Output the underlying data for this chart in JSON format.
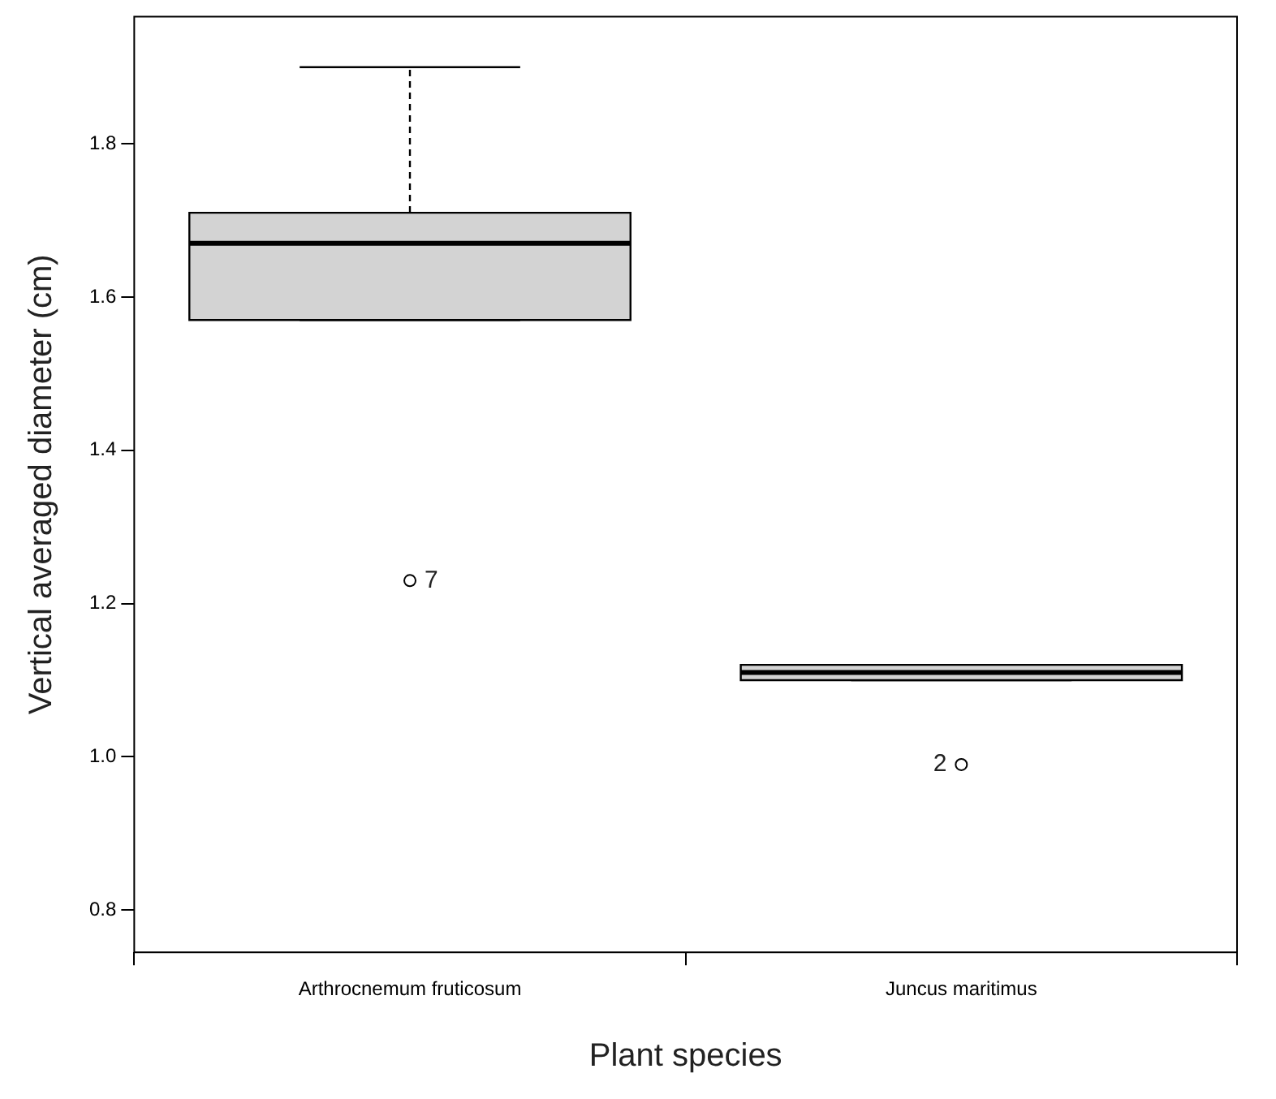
{
  "chart_data": {
    "type": "box",
    "xlabel": "Plant species",
    "ylabel": "Vertical averaged diameter (cm)",
    "categories": [
      "Arthrocnemum fruticosum",
      "Juncus maritimus"
    ],
    "boxes": [
      {
        "low": 1.57,
        "q1": 1.57,
        "median": 1.67,
        "q3": 1.71,
        "high": 1.9,
        "outliers": [
          1.23
        ]
      },
      {
        "low": 1.1,
        "q1": 1.1,
        "median": 1.11,
        "q3": 1.12,
        "high": 1.12,
        "outliers": [
          0.99
        ]
      }
    ],
    "color": "#d3d3d3",
    "ylim": [
      0.745,
      1.966
    ],
    "yticks": [
      0.8,
      {
        "value": 1,
        "label": "1.0"
      },
      1.2,
      1.4,
      1.6,
      1.8
    ],
    "annotations": [
      "7",
      "2"
    ]
  }
}
